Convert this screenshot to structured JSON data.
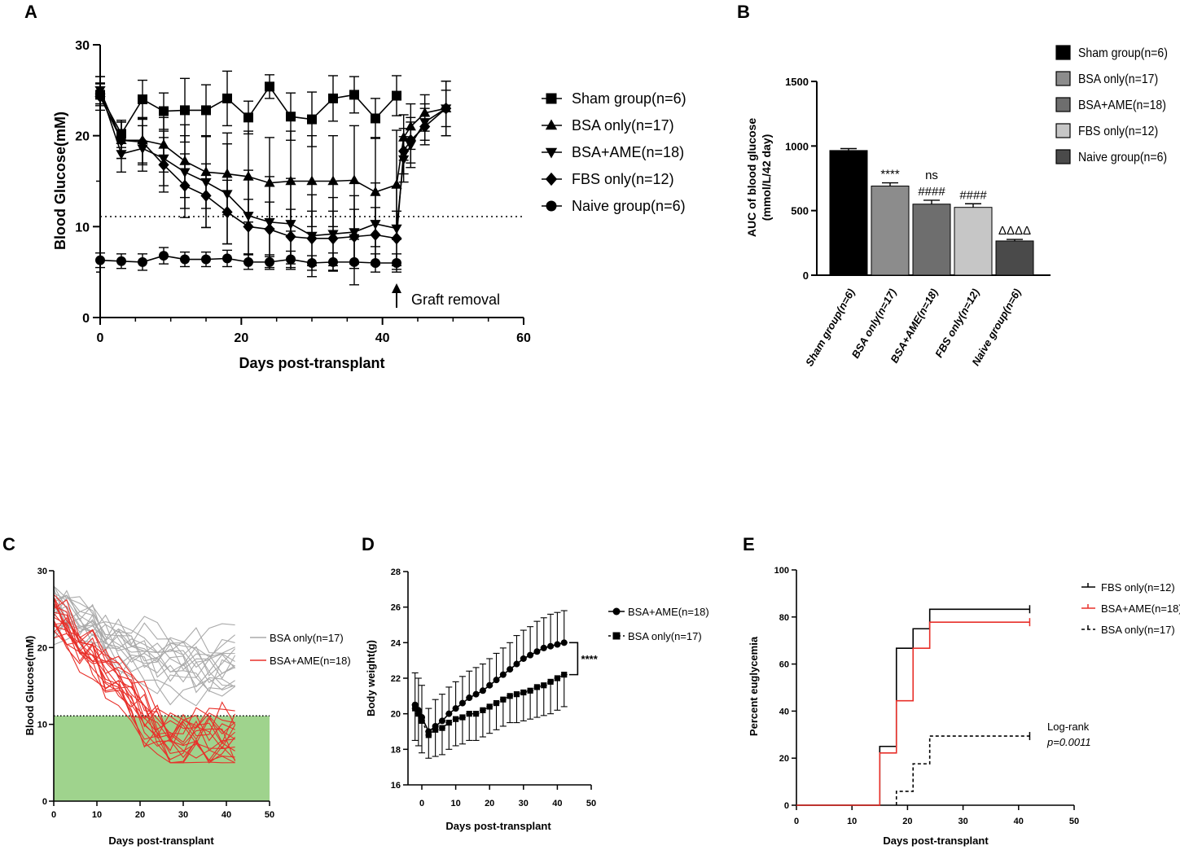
{
  "chart_data": [
    {
      "panel": "A",
      "type": "line",
      "xlabel": "Days post-transplant",
      "ylabel": "Blood Glucose(mM)",
      "xlim": [
        0,
        60
      ],
      "ylim": [
        0,
        30
      ],
      "xticks": [
        0,
        20,
        40,
        60
      ],
      "yticks": [
        0,
        10,
        20,
        30
      ],
      "threshold": 11.1,
      "annotation": "Graft removal",
      "annotation_day": 42,
      "series": [
        {
          "name": "Sham group(n=6)",
          "marker": "square",
          "x": [
            0,
            3,
            6,
            9,
            12,
            15,
            18,
            21,
            24,
            27,
            30,
            33,
            36,
            39,
            42
          ],
          "y": [
            24.5,
            20.2,
            24.0,
            22.7,
            22.8,
            22.8,
            24.1,
            22.0,
            25.4,
            22.1,
            21.8,
            24.1,
            24.5,
            21.9,
            24.4
          ],
          "err": [
            1.2,
            1.5,
            2.1,
            2.0,
            3.5,
            2.8,
            3.0,
            1.8,
            1.3,
            2.6,
            3.0,
            2.5,
            2.0,
            2.2,
            2.2
          ]
        },
        {
          "name": "BSA only(n=17)",
          "marker": "triangle-up",
          "x": [
            0,
            3,
            6,
            9,
            12,
            15,
            18,
            21,
            24,
            27,
            30,
            33,
            36,
            39,
            42,
            43,
            44,
            46,
            49
          ],
          "y": [
            25.0,
            19.5,
            19.5,
            19.0,
            17.2,
            16.0,
            15.8,
            15.5,
            14.8,
            15.0,
            15.0,
            15.0,
            15.1,
            13.8,
            14.6,
            19.8,
            21.0,
            22.5,
            23.0
          ],
          "err": [
            1.5,
            2.0,
            2.5,
            3.0,
            4.0,
            4.0,
            4.5,
            5.0,
            5.0,
            5.5,
            5.0,
            5.0,
            6.0,
            6.0,
            6.0,
            2.5,
            2.5,
            2.0,
            2.0
          ]
        },
        {
          "name": "BSA+AME(n=18)",
          "marker": "triangle-down",
          "x": [
            0,
            3,
            6,
            9,
            12,
            15,
            18,
            21,
            24,
            27,
            30,
            33,
            36,
            39,
            42,
            43,
            44,
            46,
            49
          ],
          "y": [
            25.0,
            18.0,
            18.6,
            17.5,
            16.0,
            14.9,
            13.6,
            11.2,
            10.5,
            10.3,
            9.0,
            9.2,
            9.4,
            10.3,
            9.8,
            17.4,
            19.0,
            21.5,
            23.0
          ],
          "err": [
            1.5,
            2.0,
            2.5,
            3.0,
            4.0,
            5.0,
            5.5,
            5.0,
            5.0,
            5.0,
            4.5,
            4.0,
            4.0,
            4.5,
            4.5,
            2.5,
            2.5,
            2.0,
            3.0
          ]
        },
        {
          "name": "FBS only(n=12)",
          "marker": "diamond",
          "x": [
            0,
            3,
            6,
            9,
            12,
            15,
            18,
            21,
            24,
            27,
            30,
            33,
            36,
            39,
            42,
            43,
            44,
            46,
            49
          ],
          "y": [
            24.3,
            19.5,
            19.3,
            16.8,
            14.5,
            13.4,
            11.6,
            10.0,
            9.7,
            8.9,
            8.7,
            8.7,
            8.9,
            9.1,
            8.7,
            18.3,
            19.5,
            21.0,
            23.0
          ],
          "err": [
            1.5,
            2.0,
            2.5,
            3.0,
            3.5,
            3.5,
            3.5,
            3.0,
            3.0,
            3.0,
            3.0,
            3.0,
            3.0,
            3.0,
            3.0,
            2.5,
            2.5,
            2.0,
            3.0
          ]
        },
        {
          "name": "Naive group(n=6)",
          "marker": "circle",
          "x": [
            0,
            3,
            6,
            9,
            12,
            15,
            18,
            21,
            24,
            27,
            30,
            33,
            36,
            39,
            42
          ],
          "y": [
            6.3,
            6.2,
            6.1,
            6.8,
            6.4,
            6.4,
            6.5,
            6.1,
            6.1,
            6.4,
            6.0,
            6.1,
            6.1,
            6.0,
            6.0
          ],
          "err": [
            0.8,
            0.8,
            0.9,
            0.9,
            0.8,
            0.8,
            0.9,
            0.8,
            0.8,
            0.9,
            0.8,
            1.0,
            2.5,
            1.0,
            1.0
          ]
        }
      ]
    },
    {
      "panel": "B",
      "type": "bar",
      "ylabel": "AUC of blood glucose (mmol/L/42 day)",
      "ylim": [
        0,
        1500
      ],
      "yticks": [
        0,
        500,
        1000,
        1500
      ],
      "categories": [
        "Sham group(n=6)",
        "BSA only(n=17)",
        "BSA+AME(n=18)",
        "FBS only(n=12)",
        "Naive group(n=6)"
      ],
      "values": [
        965,
        690,
        550,
        525,
        265
      ],
      "err": [
        15,
        25,
        30,
        28,
        12
      ],
      "colors": [
        "#000000",
        "#8c8c8c",
        "#6e6e6e",
        "#c6c6c6",
        "#4a4a4a"
      ],
      "annotations": [
        {
          "category": "BSA only(n=17)",
          "lines": [
            "****"
          ]
        },
        {
          "category": "BSA+AME(n=18)",
          "lines": [
            "ns",
            "####"
          ]
        },
        {
          "category": "FBS only(n=12)",
          "lines": [
            "####"
          ]
        },
        {
          "category": "Naive group(n=6)",
          "lines": [
            "ΔΔΔΔ"
          ]
        }
      ],
      "legend": [
        "Sham group(n=6)",
        "BSA only(n=17)",
        "BSA+AME(n=18)",
        "FBS only(n=12)",
        "Naive group(n=6)"
      ]
    },
    {
      "panel": "C",
      "type": "line",
      "description_series": "individual mouse traces",
      "xlabel": "Days post-transplant",
      "ylabel": "Blood Glucose(mM)",
      "xlim": [
        0,
        50
      ],
      "ylim": [
        0,
        30
      ],
      "xticks": [
        0,
        10,
        20,
        30,
        40,
        50
      ],
      "yticks": [
        0,
        10,
        20,
        30
      ],
      "threshold": 11.1,
      "shade_color": "#9fd38d",
      "legend": [
        {
          "name": "BSA only(n=17)",
          "color": "#aaaaaa",
          "n": 17
        },
        {
          "name": "BSA+AME(n=18)",
          "color": "#e8302a",
          "n": 18
        }
      ],
      "x": [
        0,
        3,
        6,
        9,
        12,
        15,
        18,
        21,
        24,
        27,
        30,
        33,
        36,
        39,
        42
      ]
    },
    {
      "panel": "D",
      "type": "line",
      "xlabel": "Days post-transplant",
      "ylabel": "Body weight(g)",
      "xlim": [
        -3,
        50
      ],
      "ylim": [
        16,
        28
      ],
      "xticks": [
        0,
        10,
        20,
        30,
        40,
        50
      ],
      "yticks": [
        16,
        18,
        20,
        22,
        24,
        26,
        28
      ],
      "significance": "****",
      "series": [
        {
          "name": "BSA+AME(n=18)",
          "marker": "circle",
          "x": [
            -2,
            -1,
            0,
            2,
            4,
            6,
            8,
            10,
            12,
            14,
            16,
            18,
            20,
            22,
            24,
            26,
            28,
            30,
            32,
            34,
            36,
            38,
            40,
            42
          ],
          "y": [
            20.5,
            20.2,
            19.8,
            19.0,
            19.3,
            19.6,
            20.0,
            20.3,
            20.6,
            20.9,
            21.1,
            21.3,
            21.6,
            21.9,
            22.2,
            22.5,
            22.8,
            23.1,
            23.3,
            23.5,
            23.7,
            23.8,
            23.9,
            24.0
          ],
          "err": [
            1.8,
            1.8,
            1.8,
            1.3,
            1.5,
            1.5,
            1.5,
            1.5,
            1.5,
            1.5,
            1.5,
            1.5,
            1.5,
            1.5,
            1.5,
            1.5,
            1.6,
            1.6,
            1.6,
            1.7,
            1.7,
            1.8,
            1.8,
            1.8
          ]
        },
        {
          "name": "BSA only(n=17)",
          "marker": "square",
          "x": [
            -2,
            -1,
            0,
            2,
            4,
            6,
            8,
            10,
            12,
            14,
            16,
            18,
            20,
            22,
            24,
            26,
            28,
            30,
            32,
            34,
            36,
            38,
            40,
            42
          ],
          "y": [
            20.3,
            20.0,
            19.6,
            18.8,
            19.1,
            19.2,
            19.5,
            19.7,
            19.8,
            20.0,
            20.0,
            20.2,
            20.4,
            20.6,
            20.8,
            21.0,
            21.1,
            21.2,
            21.3,
            21.5,
            21.6,
            21.8,
            22.0,
            22.2
          ]
        }
      ]
    },
    {
      "panel": "E",
      "type": "line",
      "subtype": "survival-step",
      "xlabel": "Days post-transplant",
      "ylabel": "Percent euglycemia",
      "xlim": [
        0,
        50
      ],
      "ylim": [
        0,
        100
      ],
      "xticks": [
        0,
        10,
        20,
        30,
        40,
        50
      ],
      "yticks": [
        0,
        20,
        40,
        60,
        80,
        100
      ],
      "annotation": [
        "Log-rank",
        "p=0.0011"
      ],
      "series": [
        {
          "name": "FBS only(n=12)",
          "color": "#000000",
          "style": "solid",
          "steps": [
            [
              0,
              0
            ],
            [
              15,
              25
            ],
            [
              18,
              66.7
            ],
            [
              21,
              75
            ],
            [
              24,
              83.3
            ],
            [
              42,
              83.3
            ]
          ]
        },
        {
          "name": "BSA+AME(n=18)",
          "color": "#e8302a",
          "style": "solid",
          "steps": [
            [
              0,
              0
            ],
            [
              15,
              22.2
            ],
            [
              18,
              44.4
            ],
            [
              21,
              66.7
            ],
            [
              24,
              77.8
            ],
            [
              42,
              77.8
            ]
          ]
        },
        {
          "name": "BSA only(n=17)",
          "color": "#000000",
          "style": "dashed",
          "steps": [
            [
              18,
              0
            ],
            [
              18,
              5.9
            ],
            [
              21,
              17.6
            ],
            [
              24,
              29.4
            ],
            [
              42,
              29.4
            ]
          ]
        }
      ]
    }
  ],
  "panel_labels": [
    "A",
    "B",
    "C",
    "D",
    "E"
  ]
}
